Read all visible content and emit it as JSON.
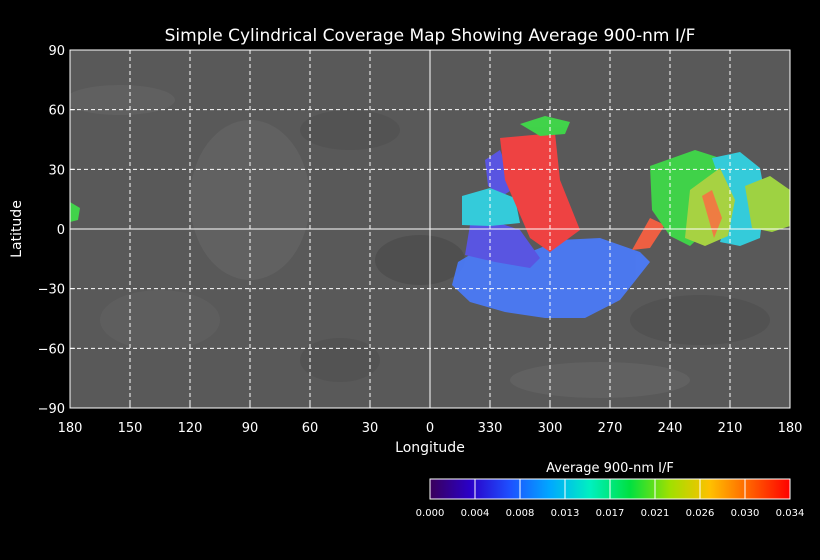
{
  "title": "Simple Cylindrical Coverage Map Showing Average 900-nm I/F",
  "x_axis": {
    "label": "Longitude",
    "ticks": [
      "180",
      "150",
      "120",
      "90",
      "60",
      "30",
      "0",
      "330",
      "300",
      "270",
      "240",
      "210",
      "180"
    ]
  },
  "y_axis": {
    "label": "Latitude",
    "ticks": [
      "90",
      "60",
      "30",
      "0",
      "−30",
      "−60",
      "−90"
    ]
  },
  "colorbar": {
    "title": "Average 900-nm I/F",
    "ticks": [
      "0.000",
      "0.004",
      "0.008",
      "0.013",
      "0.017",
      "0.021",
      "0.026",
      "0.030",
      "0.034"
    ],
    "stops": [
      "#3a005a",
      "#2a00c8",
      "#1e50ff",
      "#00a8ff",
      "#00f0c0",
      "#00e040",
      "#a0e000",
      "#ffc000",
      "#ff6000",
      "#ff0000"
    ]
  },
  "colors": {
    "background": "#000000",
    "basemap": "#595959",
    "grid": "#ffffff",
    "text": "#ffffff"
  },
  "coverage": [
    {
      "color": "#ff4040",
      "iof": 0.034
    },
    {
      "color": "#4a7cff",
      "iof": 0.009
    },
    {
      "color": "#5a55f0",
      "iof": 0.006
    },
    {
      "color": "#30d8e8",
      "iof": 0.014
    },
    {
      "color": "#3ee048",
      "iof": 0.02
    },
    {
      "color": "#b0e040",
      "iof": 0.025
    },
    {
      "color": "#ff8040",
      "iof": 0.031
    }
  ]
}
